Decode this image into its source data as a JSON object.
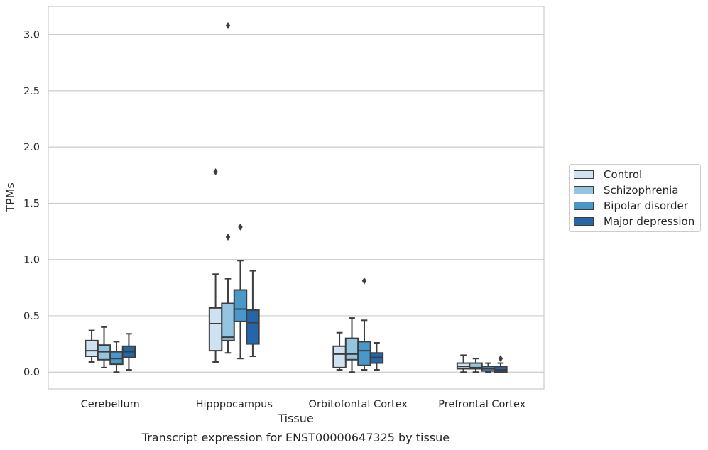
{
  "chart_data": {
    "type": "box",
    "title": "Transcript expression for ENST00000647325 by tissue",
    "xlabel": "Tissue",
    "ylabel": "TPMs",
    "ylim": [
      -0.15,
      3.25
    ],
    "yticks": [
      "0.0",
      "0.5",
      "1.0",
      "1.5",
      "2.0",
      "2.5",
      "3.0"
    ],
    "grid": "horizontal",
    "legend_position": "right",
    "categories": [
      "Cerebellum",
      "Hipppocampus",
      "Orbitofontal Cortex",
      "Prefrontal Cortex"
    ],
    "series": [
      {
        "name": "Control",
        "color": "#d0e1f2",
        "boxes": [
          {
            "whislo": 0.09,
            "q1": 0.14,
            "med": 0.19,
            "q3": 0.28,
            "whishi": 0.37,
            "fliers": []
          },
          {
            "whislo": 0.09,
            "q1": 0.19,
            "med": 0.43,
            "q3": 0.57,
            "whishi": 0.87,
            "fliers": [
              1.78
            ]
          },
          {
            "whislo": 0.02,
            "q1": 0.04,
            "med": 0.16,
            "q3": 0.23,
            "whishi": 0.35,
            "fliers": []
          },
          {
            "whislo": 0.0,
            "q1": 0.03,
            "med": 0.05,
            "q3": 0.08,
            "whishi": 0.15,
            "fliers": []
          }
        ]
      },
      {
        "name": "Schizophrenia",
        "color": "#94c4df",
        "boxes": [
          {
            "whislo": 0.04,
            "q1": 0.11,
            "med": 0.18,
            "q3": 0.24,
            "whishi": 0.4,
            "fliers": []
          },
          {
            "whislo": 0.17,
            "q1": 0.28,
            "med": 0.31,
            "q3": 0.61,
            "whishi": 0.83,
            "fliers": [
              1.2,
              3.08
            ]
          },
          {
            "whislo": 0.0,
            "q1": 0.11,
            "med": 0.16,
            "q3": 0.3,
            "whishi": 0.48,
            "fliers": []
          },
          {
            "whislo": 0.0,
            "q1": 0.03,
            "med": 0.04,
            "q3": 0.08,
            "whishi": 0.12,
            "fliers": []
          }
        ]
      },
      {
        "name": "Bipolar disorder",
        "color": "#4a98c9",
        "boxes": [
          {
            "whislo": 0.0,
            "q1": 0.07,
            "med": 0.12,
            "q3": 0.18,
            "whishi": 0.27,
            "fliers": []
          },
          {
            "whislo": 0.12,
            "q1": 0.45,
            "med": 0.56,
            "q3": 0.73,
            "whishi": 0.99,
            "fliers": [
              1.29
            ]
          },
          {
            "whislo": 0.02,
            "q1": 0.06,
            "med": 0.19,
            "q3": 0.27,
            "whishi": 0.46,
            "fliers": [
              0.81
            ]
          },
          {
            "whislo": 0.0,
            "q1": 0.01,
            "med": 0.03,
            "q3": 0.05,
            "whishi": 0.08,
            "fliers": []
          }
        ]
      },
      {
        "name": "Major depression",
        "color": "#2666a8",
        "boxes": [
          {
            "whislo": 0.02,
            "q1": 0.13,
            "med": 0.18,
            "q3": 0.23,
            "whishi": 0.34,
            "fliers": []
          },
          {
            "whislo": 0.14,
            "q1": 0.25,
            "med": 0.44,
            "q3": 0.55,
            "whishi": 0.9,
            "fliers": []
          },
          {
            "whislo": 0.02,
            "q1": 0.08,
            "med": 0.13,
            "q3": 0.17,
            "whishi": 0.26,
            "fliers": []
          },
          {
            "whislo": 0.0,
            "q1": 0.0,
            "med": 0.02,
            "q3": 0.05,
            "whishi": 0.08,
            "fliers": [
              0.12
            ]
          }
        ]
      }
    ]
  }
}
